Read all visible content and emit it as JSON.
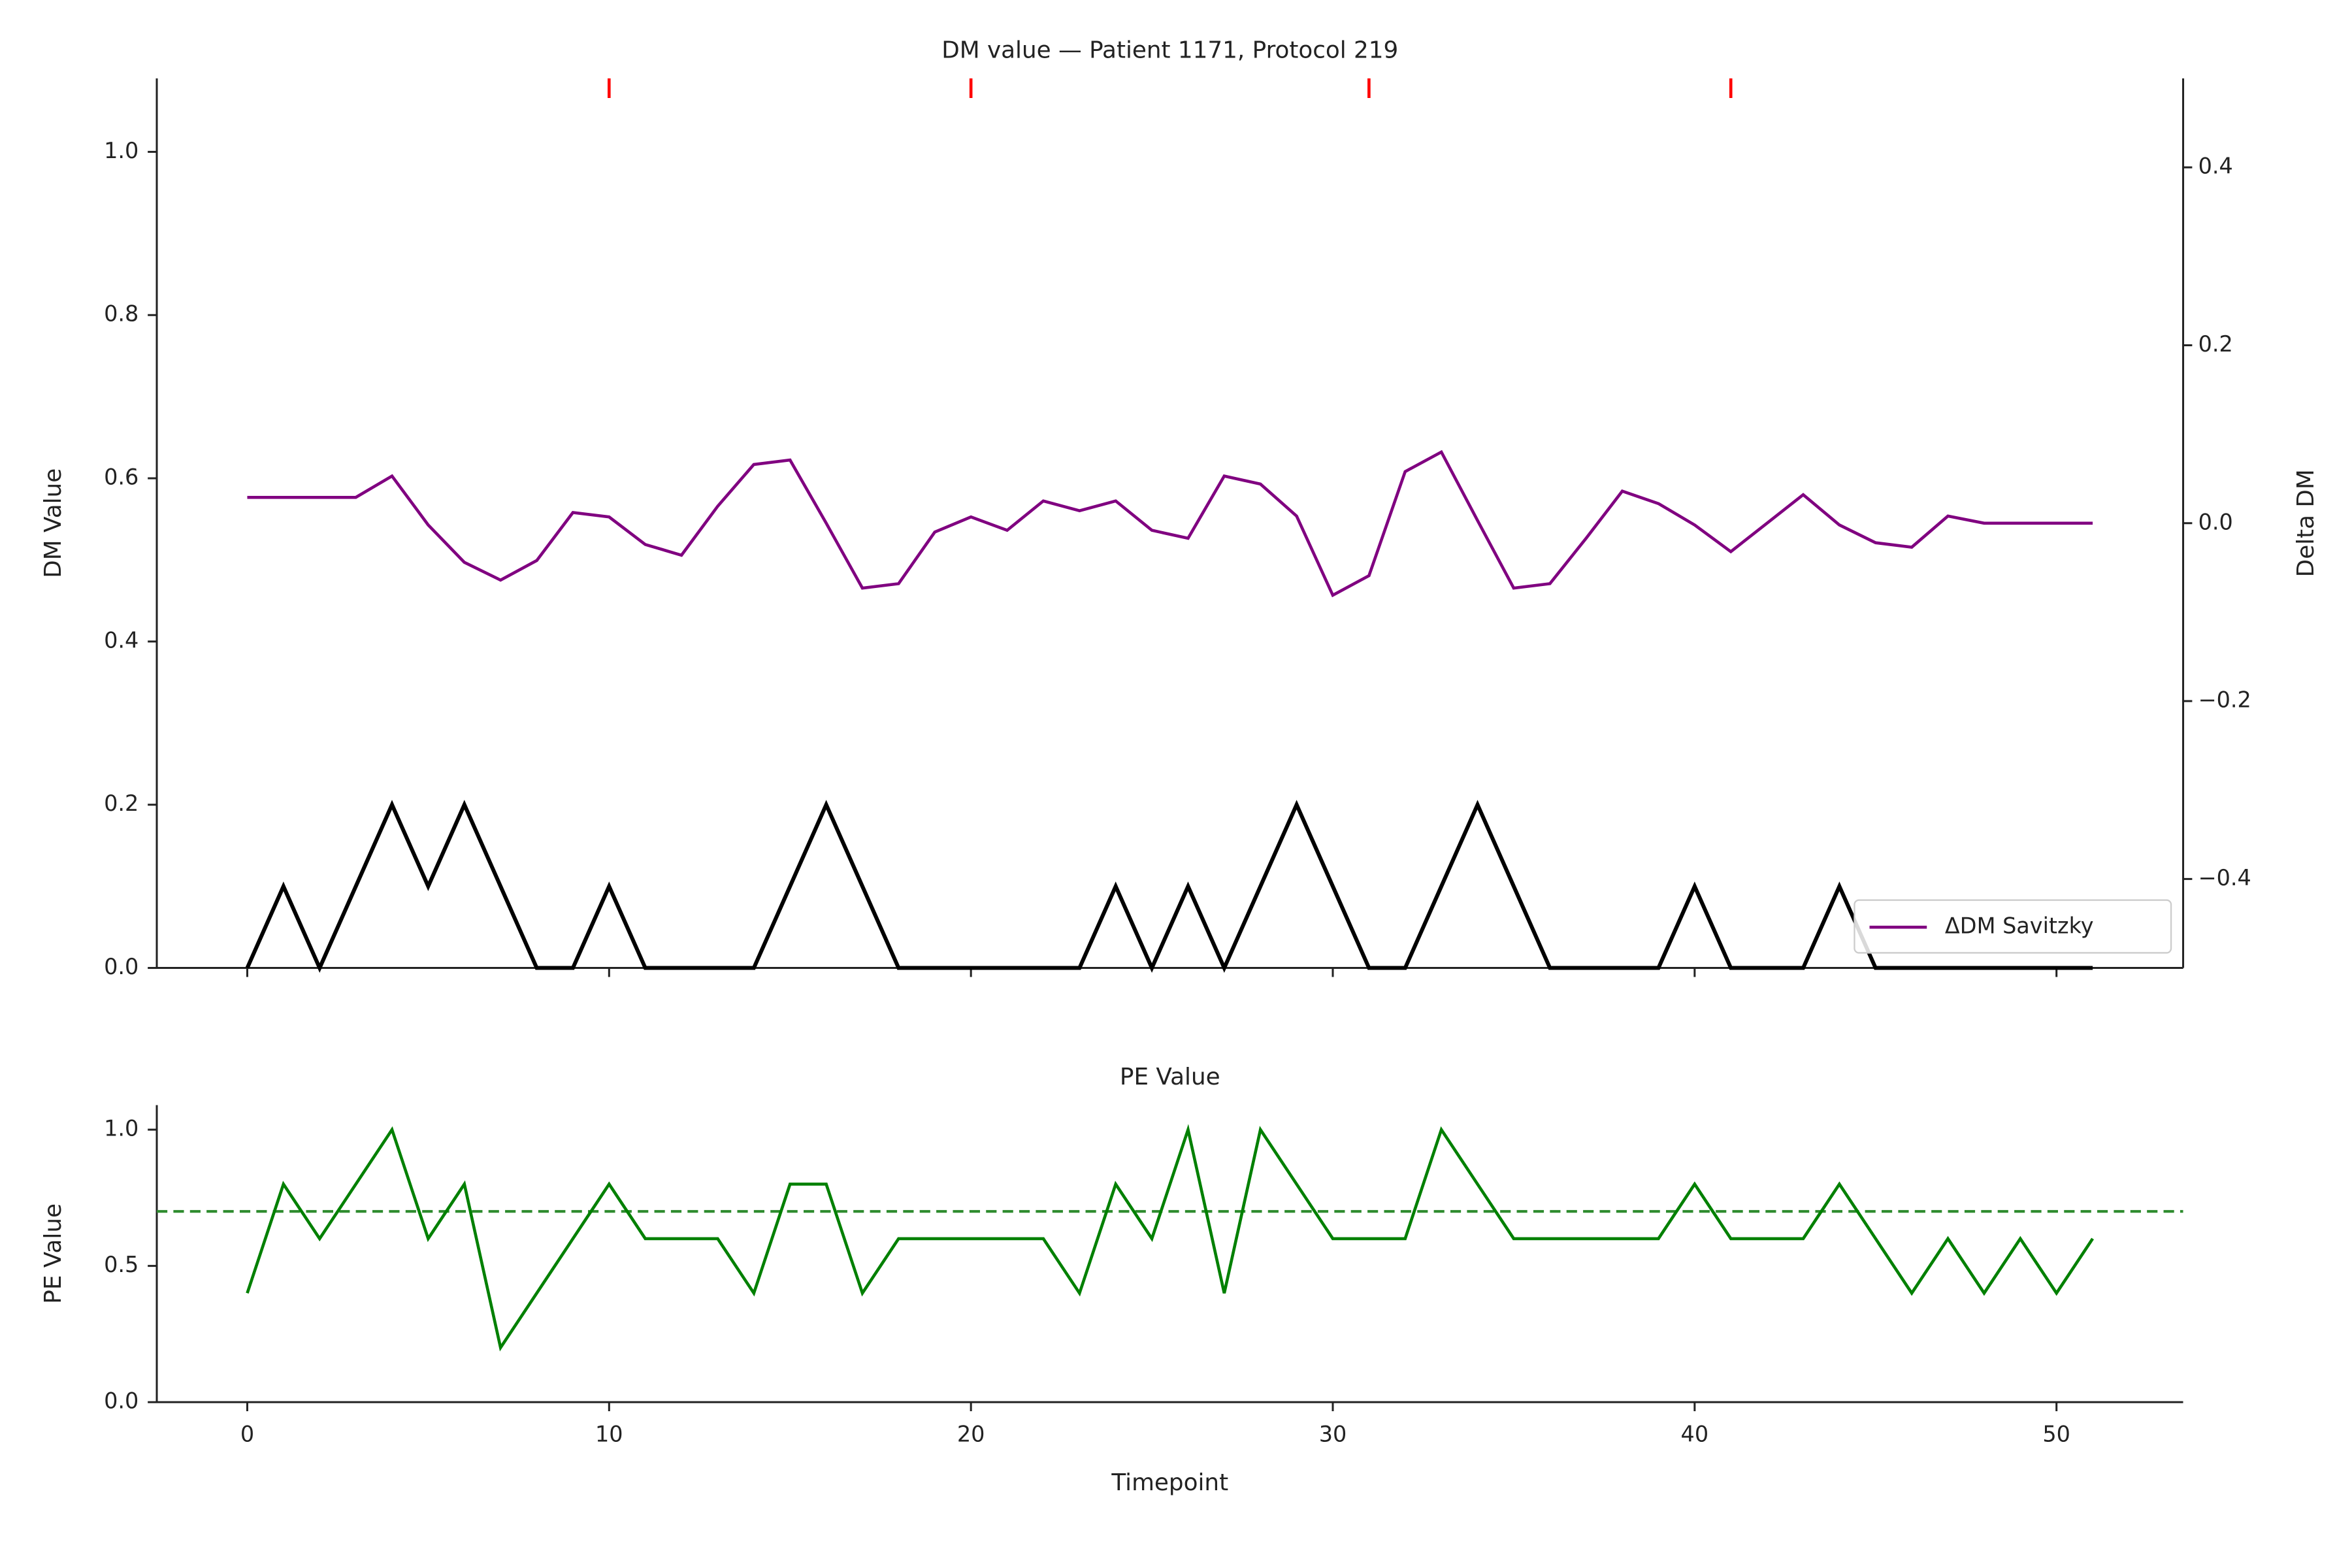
{
  "chart_data": [
    {
      "type": "line",
      "title": "DM value — Patient 1171, Protocol 219",
      "ylabel": "DM Value",
      "y2label": "Delta DM",
      "x": [
        0,
        1,
        2,
        3,
        4,
        5,
        6,
        7,
        8,
        9,
        10,
        11,
        12,
        13,
        14,
        15,
        16,
        17,
        18,
        19,
        20,
        21,
        22,
        23,
        24,
        25,
        26,
        27,
        28,
        29,
        30,
        31,
        32,
        33,
        34,
        35,
        36,
        37,
        38,
        39,
        40,
        41,
        42,
        43,
        44,
        45,
        46,
        47,
        48,
        49,
        50,
        51
      ],
      "series": [
        {
          "color": "#000000",
          "axis": "y",
          "values": [
            0,
            0.1,
            0,
            0.1,
            0.2,
            0.1,
            0.2,
            0.1,
            0,
            0,
            0.1,
            0,
            0,
            0,
            0,
            0.1,
            0.2,
            0.1,
            0,
            0,
            0,
            0,
            0,
            0,
            0.1,
            0,
            0.1,
            0,
            0.1,
            0.2,
            0.1,
            0,
            0,
            0.1,
            0.2,
            0.1,
            0,
            0,
            0,
            0,
            0.1,
            0,
            0,
            0,
            0.1,
            0,
            0,
            0,
            0,
            0,
            0,
            0
          ]
        },
        {
          "name": "ΔDM Savitzky",
          "color": "#800080",
          "axis": "y2",
          "values": [
            0.029,
            0.029,
            0.029,
            0.029,
            0.053,
            -0.002,
            -0.044,
            -0.064,
            -0.042,
            0.012,
            0.007,
            -0.024,
            -0.036,
            0.019,
            0.066,
            0.071,
            0,
            -0.073,
            -0.068,
            -0.01,
            0.007,
            -0.008,
            0.025,
            0.014,
            0.025,
            -0.008,
            -0.017,
            0.053,
            0.044,
            0.008,
            -0.081,
            -0.059,
            0.058,
            0.08,
            0.003,
            -0.073,
            -0.068,
            -0.017,
            0.036,
            0.022,
            -0.002,
            -0.032,
            0,
            0.032,
            -0.002,
            -0.022,
            -0.027,
            0.008,
            0,
            0,
            0,
            0
          ]
        }
      ],
      "xlim": [
        -2.5,
        53.5
      ],
      "xticks": [
        0,
        10,
        20,
        30,
        40,
        50
      ],
      "ylim": [
        0,
        1.09
      ],
      "yticks": [
        {
          "value": 0,
          "label": "0.0"
        },
        {
          "value": 0.2,
          "label": "0.2"
        },
        {
          "value": 0.4,
          "label": "0.4"
        },
        {
          "value": 0.6,
          "label": "0.6"
        },
        {
          "value": 0.8,
          "label": "0.8"
        },
        {
          "value": 1,
          "label": "1.0"
        }
      ],
      "y2lim": [
        -0.5,
        0.5
      ],
      "y2ticks": [
        {
          "value": -0.4,
          "label": "−0.4"
        },
        {
          "value": -0.2,
          "label": "−0.2"
        },
        {
          "value": 0,
          "label": "0.0"
        },
        {
          "value": 0.2,
          "label": "0.2"
        },
        {
          "value": 0.4,
          "label": "0.4"
        }
      ],
      "event_markers": [
        10,
        20,
        31,
        41
      ],
      "event_color": "#ff0000",
      "legend": "lower right"
    },
    {
      "type": "line",
      "title": "PE Value",
      "ylabel": "PE Value",
      "xlabel": "Timepoint",
      "x": [
        0,
        1,
        2,
        3,
        4,
        5,
        6,
        7,
        8,
        9,
        10,
        11,
        12,
        13,
        14,
        15,
        16,
        17,
        18,
        19,
        20,
        21,
        22,
        23,
        24,
        25,
        26,
        27,
        28,
        29,
        30,
        31,
        32,
        33,
        34,
        35,
        36,
        37,
        38,
        39,
        40,
        41,
        42,
        43,
        44,
        45,
        46,
        47,
        48,
        49,
        50,
        51
      ],
      "series": [
        {
          "color": "#008000",
          "values": [
            0.4,
            0.8,
            0.6,
            0.8,
            1,
            0.6,
            0.8,
            0.2,
            0.4,
            0.6,
            0.8,
            0.6,
            0.6,
            0.6,
            0.4,
            0.8,
            0.8,
            0.4,
            0.6,
            0.6,
            0.6,
            0.6,
            0.6,
            0.4,
            0.8,
            0.6,
            1,
            0.4,
            1,
            0.8,
            0.6,
            0.6,
            0.6,
            1,
            0.8,
            0.6,
            0.6,
            0.6,
            0.6,
            0.6,
            0.8,
            0.6,
            0.6,
            0.6,
            0.8,
            0.6,
            0.4,
            0.6,
            0.4,
            0.6,
            0.4,
            0.6
          ]
        }
      ],
      "threshold": {
        "value": 0.7,
        "color": "#2e8b2e"
      },
      "xlim": [
        -2.5,
        53.5
      ],
      "xticks": [
        0,
        10,
        20,
        30,
        40,
        50
      ],
      "ylim": [
        0,
        1.09
      ],
      "yticks": [
        {
          "value": 0,
          "label": "0.0"
        },
        {
          "value": 0.5,
          "label": "0.5"
        },
        {
          "value": 1,
          "label": "1.0"
        }
      ]
    }
  ]
}
